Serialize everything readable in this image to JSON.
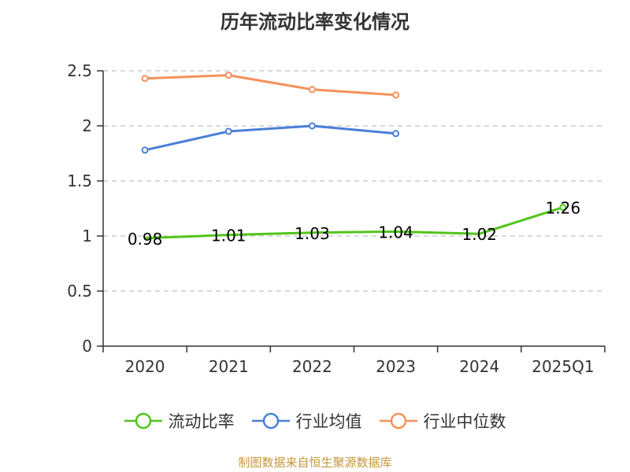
{
  "chart_data": {
    "type": "line",
    "title": "历年流动比率变化情况",
    "categories": [
      "2020",
      "2021",
      "2022",
      "2023",
      "2024",
      "2025Q1"
    ],
    "ylim": [
      0,
      2.5
    ],
    "yticks": [
      0,
      0.5,
      1,
      1.5,
      2,
      2.5
    ],
    "ytick_labels": [
      "0",
      "0.5",
      "1",
      "1.5",
      "2",
      "2.5"
    ],
    "grid": true,
    "legend_position": "bottom",
    "series": [
      {
        "name": "流动比率",
        "color": "#52c41a",
        "values": [
          0.98,
          1.01,
          1.03,
          1.04,
          1.02,
          1.26
        ],
        "labels": [
          "0.98",
          "1.01",
          "1.03",
          "1.04",
          "1.02",
          "1.26"
        ],
        "show_labels": true
      },
      {
        "name": "行业均值",
        "color": "#4a7fd8",
        "values": [
          1.78,
          1.95,
          2.0,
          1.93,
          null,
          null
        ],
        "show_labels": false
      },
      {
        "name": "行业中位数",
        "color": "#f5915a",
        "values": [
          2.43,
          2.46,
          2.33,
          2.28,
          null,
          null
        ],
        "show_labels": false
      }
    ]
  },
  "footer": {
    "source": "制图数据来自恒生聚源数据库"
  }
}
